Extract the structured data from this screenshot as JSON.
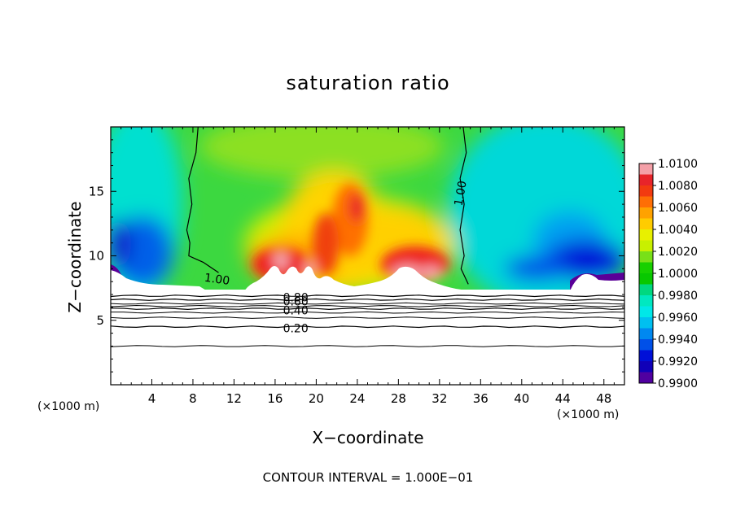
{
  "chart_data": {
    "type": "heatmap",
    "title": "saturation ratio",
    "xlabel": "X−coordinate",
    "ylabel": "Z−coordinate",
    "x_unit": "(×1000 m)",
    "x_ticks": [
      4,
      8,
      12,
      16,
      20,
      24,
      28,
      32,
      36,
      40,
      44,
      48
    ],
    "y_ticks": [
      5,
      10,
      15
    ],
    "xlim": [
      0,
      50
    ],
    "ylim": [
      0,
      20
    ],
    "colorbar": {
      "levels": [
        "1.0100",
        "1.0080",
        "1.0060",
        "1.0040",
        "1.0020",
        "1.0000",
        "0.9980",
        "0.9960",
        "0.9940",
        "0.9920",
        "0.9900"
      ],
      "min": 0.99,
      "max": 1.01,
      "colors": [
        "#f4a0a8",
        "#e8242a",
        "#f23a10",
        "#fe6e05",
        "#ffa200",
        "#ffcc00",
        "#e8f000",
        "#c8f000",
        "#78e018",
        "#18d000",
        "#08c800",
        "#00d880",
        "#00e8c0",
        "#00e8e8",
        "#00c0f0",
        "#0088f0",
        "#0050e8",
        "#0010d8",
        "#1000b8",
        "#5000a0"
      ]
    },
    "contour_lines": [
      {
        "label": "1.00",
        "x": [
          8.5,
          8.3,
          7.6,
          7.9,
          7.4,
          7.7,
          7.6,
          9.0,
          10.5
        ],
        "y": [
          20,
          18,
          16,
          14,
          12,
          11,
          10,
          9.5,
          8.7
        ]
      },
      {
        "label": "1.00",
        "x": [
          34.3,
          34.6,
          34.0,
          34.4,
          34.0,
          34.4,
          34.1,
          34.8
        ],
        "y": [
          20,
          18,
          16,
          14,
          12,
          10,
          9,
          7.8
        ]
      },
      {
        "label": "0.80",
        "z": 6.9
      },
      {
        "label": "0.60",
        "z": 6.6
      },
      {
        "label": "0.40",
        "z": 5.9
      },
      {
        "label": "0.20",
        "z": 4.5
      }
    ],
    "contour_interval": "CONTOUR INTERVAL = 1.000E−01"
  }
}
